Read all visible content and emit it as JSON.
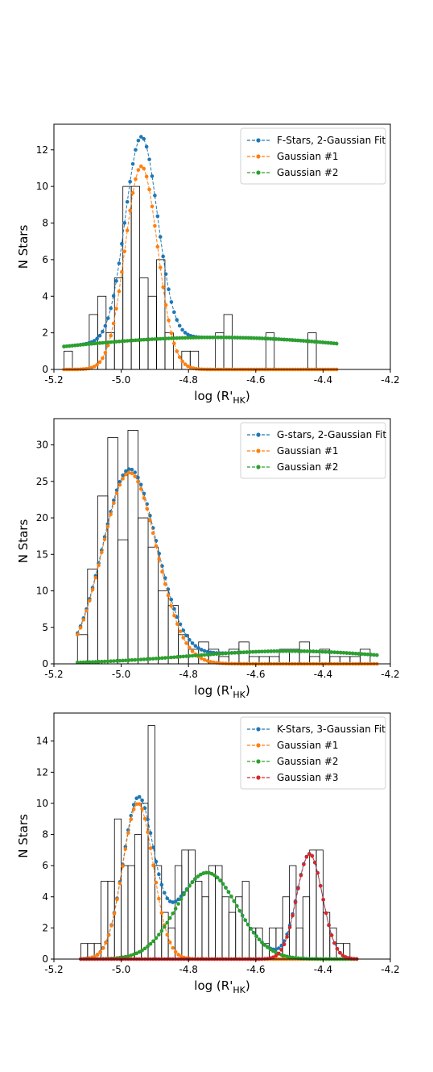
{
  "chart_data": [
    {
      "type": "histogram+line",
      "xlabel_main": "log (R'",
      "xlabel_sub": "HK",
      "xlabel_end": ")",
      "ylabel": "N Stars",
      "xlim": [
        -5.2,
        -4.2
      ],
      "ylim": [
        0,
        13.4
      ],
      "xticks": [
        "-5.2",
        "-5.0",
        "-4.8",
        "-4.6",
        "-4.4",
        "-4.2"
      ],
      "yticks": [
        "0",
        "2",
        "4",
        "6",
        "8",
        "10",
        "12"
      ],
      "xtick_values": [
        -5.2,
        -5.0,
        -4.8,
        -4.6,
        -4.4,
        -4.2
      ],
      "ytick_values": [
        0,
        2,
        4,
        6,
        8,
        10,
        12
      ],
      "legend_position": "upper-right",
      "histogram": {
        "edges": [
          -5.17,
          -5.145,
          -5.12,
          -5.095,
          -5.07,
          -5.045,
          -5.02,
          -4.995,
          -4.97,
          -4.945,
          -4.92,
          -4.895,
          -4.87,
          -4.845,
          -4.82,
          -4.795,
          -4.77,
          -4.745,
          -4.72,
          -4.695,
          -4.67,
          -4.645,
          -4.62,
          -4.595,
          -4.57,
          -4.545,
          -4.52,
          -4.495,
          -4.47,
          -4.445,
          -4.42,
          -4.395,
          -4.37
        ],
        "counts": [
          1,
          0,
          0,
          3,
          4,
          2,
          5,
          10,
          10,
          5,
          4,
          6,
          2,
          0,
          1,
          1,
          0,
          0,
          2,
          3,
          0,
          0,
          0,
          0,
          2,
          0,
          0,
          0,
          0,
          2,
          0,
          0
        ]
      },
      "series": [
        {
          "name": "F-Stars, 2-Gaussian Fit",
          "color": "#1f77b4",
          "linestyle": "dashed"
        },
        {
          "name": "Gaussian #1",
          "color": "#ff7f0e",
          "linestyle": "dashed"
        },
        {
          "name": "Gaussian #2",
          "color": "#2ca02c",
          "linestyle": "dashed"
        }
      ],
      "gaussians": [
        {
          "amplitude": 11.1,
          "mean": -4.94,
          "sigma": 0.048
        },
        {
          "amplitude": 1.75,
          "mean": -4.72,
          "sigma": 0.55
        }
      ],
      "fit_x_range": [
        -5.17,
        -4.36
      ],
      "fit_points": 100
    },
    {
      "type": "histogram+line",
      "xlabel_main": "log (R'",
      "xlabel_sub": "HK",
      "xlabel_end": ")",
      "ylabel": "N Stars",
      "xlim": [
        -5.2,
        -4.2
      ],
      "ylim": [
        0,
        33.6
      ],
      "xticks": [
        "-5.2",
        "-5.0",
        "-4.8",
        "-4.6",
        "-4.4",
        "-4.2"
      ],
      "yticks": [
        "0",
        "5",
        "10",
        "15",
        "20",
        "25",
        "30"
      ],
      "xtick_values": [
        -5.2,
        -5.0,
        -4.8,
        -4.6,
        -4.4,
        -4.2
      ],
      "ytick_values": [
        0,
        5,
        10,
        15,
        20,
        25,
        30
      ],
      "legend_position": "upper-right",
      "histogram": {
        "edges": [
          -5.13,
          -5.1,
          -5.07,
          -5.04,
          -5.01,
          -4.98,
          -4.95,
          -4.92,
          -4.89,
          -4.86,
          -4.83,
          -4.8,
          -4.77,
          -4.74,
          -4.71,
          -4.68,
          -4.65,
          -4.62,
          -4.59,
          -4.56,
          -4.53,
          -4.5,
          -4.47,
          -4.44,
          -4.41,
          -4.38,
          -4.35,
          -4.32,
          -4.29,
          -4.26,
          -4.23
        ],
        "counts": [
          4,
          13,
          23,
          31,
          17,
          32,
          20,
          16,
          10,
          8,
          4,
          2,
          3,
          2,
          1,
          2,
          3,
          1,
          1,
          1,
          2,
          2,
          3,
          1,
          2,
          1,
          1,
          1,
          2,
          0
        ]
      },
      "series": [
        {
          "name": "G-stars, 2-Gaussian Fit",
          "color": "#1f77b4",
          "linestyle": "dashed"
        },
        {
          "name": "Gaussian #1",
          "color": "#ff7f0e",
          "linestyle": "dashed"
        },
        {
          "name": "Gaussian #2",
          "color": "#2ca02c",
          "linestyle": "dashed"
        }
      ],
      "gaussians": [
        {
          "amplitude": 26.2,
          "mean": -4.975,
          "sigma": 0.08
        },
        {
          "amplitude": 1.75,
          "mean": -4.5,
          "sigma": 0.3
        }
      ],
      "fit_x_range": [
        -5.13,
        -4.24
      ],
      "fit_points": 100
    },
    {
      "type": "histogram+line",
      "xlabel_main": "log (R'",
      "xlabel_sub": "HK",
      "xlabel_end": ")",
      "ylabel": "N Stars",
      "xlim": [
        -5.2,
        -4.2
      ],
      "ylim": [
        0,
        15.8
      ],
      "xticks": [
        "-5.2",
        "-5.0",
        "-4.8",
        "-4.6",
        "-4.4",
        "-4.2"
      ],
      "yticks": [
        "0",
        "2",
        "4",
        "6",
        "8",
        "10",
        "12",
        "14"
      ],
      "xtick_values": [
        -5.2,
        -5.0,
        -4.8,
        -4.6,
        -4.4,
        -4.2
      ],
      "ytick_values": [
        0,
        2,
        4,
        6,
        8,
        10,
        12,
        14
      ],
      "legend_position": "upper-right",
      "histogram": {
        "edges": [
          -5.12,
          -5.1,
          -5.08,
          -5.06,
          -5.04,
          -5.02,
          -5.0,
          -4.98,
          -4.96,
          -4.94,
          -4.92,
          -4.9,
          -4.88,
          -4.86,
          -4.84,
          -4.82,
          -4.8,
          -4.78,
          -4.76,
          -4.74,
          -4.72,
          -4.7,
          -4.68,
          -4.66,
          -4.64,
          -4.62,
          -4.6,
          -4.58,
          -4.56,
          -4.54,
          -4.52,
          -4.5,
          -4.48,
          -4.46,
          -4.44,
          -4.42,
          -4.4,
          -4.38,
          -4.36,
          -4.34,
          -4.32,
          -4.3
        ],
        "counts": [
          1,
          1,
          1,
          5,
          5,
          9,
          6,
          6,
          8,
          10,
          15,
          6,
          3,
          2,
          6,
          7,
          7,
          5,
          4,
          6,
          6,
          4,
          3,
          4,
          5,
          2,
          2,
          1,
          2,
          2,
          4,
          6,
          2,
          4,
          7,
          7,
          3,
          2,
          1,
          1,
          0
        ]
      },
      "series": [
        {
          "name": "K-Stars, 3-Gaussian Fit",
          "color": "#1f77b4",
          "linestyle": "dashed"
        },
        {
          "name": "Gaussian #1",
          "color": "#ff7f0e",
          "linestyle": "dashed"
        },
        {
          "name": "Gaussian #2",
          "color": "#2ca02c",
          "linestyle": "dashed"
        },
        {
          "name": "Gaussian #3",
          "color": "#d62728",
          "linestyle": "dashed"
        }
      ],
      "gaussians": [
        {
          "amplitude": 10.0,
          "mean": -4.95,
          "sigma": 0.045
        },
        {
          "amplitude": 5.55,
          "mean": -4.745,
          "sigma": 0.09
        },
        {
          "amplitude": 6.75,
          "mean": -4.44,
          "sigma": 0.038
        }
      ],
      "fit_x_range": [
        -5.12,
        -4.3
      ],
      "fit_points": 100
    }
  ]
}
